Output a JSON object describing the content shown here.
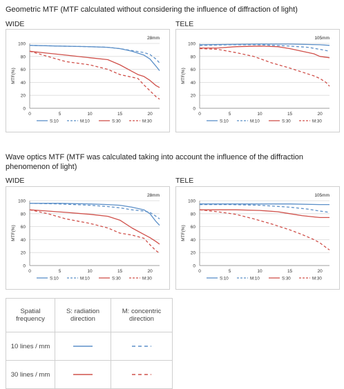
{
  "sections": [
    {
      "title": "Geometric MTF (MTF calculated without considering the influence of diffraction of light)"
    },
    {
      "title": "Wave optics MTF (MTF was calculated taking into account the influence of the diffraction phenomenon of light)"
    }
  ],
  "legend_table": {
    "headers": [
      "Spatial frequency",
      "S: radiation direction",
      "M: concentric direction"
    ],
    "rows": [
      {
        "label": "10 lines / mm",
        "color": "#5b8fc8"
      },
      {
        "label": "30 lines / mm",
        "color": "#d0504a"
      }
    ]
  },
  "colors": {
    "blue": "#5b8fc8",
    "red": "#d0504a",
    "grid": "#d9d9d9"
  },
  "chart_data": [
    {
      "type": "line",
      "panel": "WIDE",
      "focal_length": "28mm",
      "section": "Geometric MTF",
      "ylabel": "MTF(%)",
      "xlim": [
        0,
        21.6
      ],
      "ylim": [
        0,
        100
      ],
      "xticks": [
        0,
        5,
        10,
        15,
        20
      ],
      "yticks": [
        0,
        20,
        40,
        60,
        80,
        100
      ],
      "series": [
        {
          "name": "S:10",
          "style": "solid",
          "color": "blue",
          "x": [
            0,
            5,
            10,
            13,
            15,
            17,
            19,
            20,
            21,
            21.6
          ],
          "y": [
            97,
            96,
            95,
            94,
            92,
            88,
            82,
            76,
            65,
            58
          ]
        },
        {
          "name": "M:10",
          "style": "dashed",
          "color": "blue",
          "x": [
            0,
            5,
            10,
            13,
            15,
            17,
            19,
            20,
            21,
            21.6
          ],
          "y": [
            97,
            96,
            95,
            94,
            92,
            89,
            86,
            83,
            76,
            70
          ]
        },
        {
          "name": "S:30",
          "style": "solid",
          "color": "red",
          "x": [
            0,
            3,
            6,
            10,
            13,
            15,
            17,
            18,
            19,
            20,
            21,
            21.6
          ],
          "y": [
            88,
            85,
            82,
            78,
            75,
            67,
            57,
            52,
            49,
            43,
            35,
            32
          ]
        },
        {
          "name": "M:30",
          "style": "dashed",
          "color": "red",
          "x": [
            0,
            3,
            6,
            10,
            13,
            15,
            17,
            18,
            19,
            20,
            21,
            21.6
          ],
          "y": [
            88,
            80,
            72,
            67,
            60,
            52,
            48,
            46,
            36,
            27,
            18,
            14
          ]
        }
      ]
    },
    {
      "type": "line",
      "panel": "TELE",
      "focal_length": "105mm",
      "section": "Geometric MTF",
      "ylabel": "MTF(%)",
      "xlim": [
        0,
        21.6
      ],
      "ylim": [
        0,
        100
      ],
      "xticks": [
        0,
        5,
        10,
        15,
        20
      ],
      "yticks": [
        0,
        20,
        40,
        60,
        80,
        100
      ],
      "series": [
        {
          "name": "S:10",
          "style": "solid",
          "color": "blue",
          "x": [
            0,
            5,
            10,
            15,
            20,
            21.6
          ],
          "y": [
            98,
            98.5,
            99,
            99,
            98,
            97
          ]
        },
        {
          "name": "M:10",
          "style": "dashed",
          "color": "blue",
          "x": [
            0,
            5,
            10,
            15,
            18,
            20,
            21.6
          ],
          "y": [
            97,
            98,
            98,
            96,
            94,
            91,
            88
          ]
        },
        {
          "name": "S:30",
          "style": "solid",
          "color": "red",
          "x": [
            0,
            3,
            6,
            10,
            13,
            15,
            17,
            19,
            20,
            21.6
          ],
          "y": [
            93,
            93,
            95,
            96,
            95,
            92,
            88,
            84,
            80,
            78
          ]
        },
        {
          "name": "M:30",
          "style": "dashed",
          "color": "red",
          "x": [
            0,
            3,
            6,
            9,
            12,
            15,
            17,
            19,
            20,
            21,
            21.6
          ],
          "y": [
            92,
            91,
            86,
            80,
            70,
            62,
            56,
            50,
            46,
            40,
            34
          ]
        }
      ]
    },
    {
      "type": "line",
      "panel": "WIDE",
      "focal_length": "28mm",
      "section": "Wave optics MTF",
      "ylabel": "MTF(%)",
      "xlim": [
        0,
        21.6
      ],
      "ylim": [
        0,
        100
      ],
      "xticks": [
        0,
        5,
        10,
        15,
        20
      ],
      "yticks": [
        0,
        20,
        40,
        60,
        80,
        100
      ],
      "series": [
        {
          "name": "S:10",
          "style": "solid",
          "color": "blue",
          "x": [
            0,
            5,
            10,
            13,
            15,
            17,
            19,
            20,
            21,
            21.6
          ],
          "y": [
            96,
            96,
            95,
            94,
            93,
            90,
            86,
            80,
            68,
            62
          ]
        },
        {
          "name": "M:10",
          "style": "dashed",
          "color": "blue",
          "x": [
            0,
            5,
            10,
            13,
            15,
            17,
            19,
            20,
            21,
            21.6
          ],
          "y": [
            96,
            95,
            93,
            91,
            89,
            86,
            84,
            82,
            76,
            72
          ]
        },
        {
          "name": "S:30",
          "style": "solid",
          "color": "red",
          "x": [
            0,
            3,
            6,
            10,
            13,
            15,
            17,
            19,
            20,
            21,
            21.6
          ],
          "y": [
            86,
            84,
            82,
            79,
            76,
            70,
            58,
            48,
            43,
            37,
            33
          ]
        },
        {
          "name": "M:30",
          "style": "dashed",
          "color": "red",
          "x": [
            0,
            3,
            6,
            10,
            13,
            15,
            17,
            19,
            20,
            21,
            21.6
          ],
          "y": [
            86,
            80,
            72,
            65,
            58,
            50,
            47,
            42,
            32,
            23,
            19
          ]
        }
      ]
    },
    {
      "type": "line",
      "panel": "TELE",
      "focal_length": "105mm",
      "section": "Wave optics MTF",
      "ylabel": "MTF(%)",
      "xlim": [
        0,
        21.6
      ],
      "ylim": [
        0,
        100
      ],
      "xticks": [
        0,
        5,
        10,
        15,
        20
      ],
      "yticks": [
        0,
        20,
        40,
        60,
        80,
        100
      ],
      "series": [
        {
          "name": "S:10",
          "style": "solid",
          "color": "blue",
          "x": [
            0,
            5,
            10,
            15,
            20,
            21.6
          ],
          "y": [
            95,
            95,
            95,
            95,
            94,
            94
          ]
        },
        {
          "name": "M:10",
          "style": "dashed",
          "color": "blue",
          "x": [
            0,
            5,
            10,
            15,
            18,
            20,
            21.6
          ],
          "y": [
            94,
            94,
            93,
            90,
            87,
            84,
            82
          ]
        },
        {
          "name": "S:30",
          "style": "solid",
          "color": "red",
          "x": [
            0,
            3,
            6,
            10,
            13,
            15,
            17,
            19,
            20,
            21.6
          ],
          "y": [
            86,
            86,
            86,
            85,
            83,
            80,
            77,
            75,
            74,
            74
          ]
        },
        {
          "name": "M:30",
          "style": "dashed",
          "color": "red",
          "x": [
            0,
            3,
            6,
            9,
            12,
            15,
            17,
            19,
            20,
            21,
            21.6
          ],
          "y": [
            86,
            83,
            79,
            72,
            64,
            55,
            48,
            40,
            35,
            28,
            24
          ]
        }
      ]
    }
  ]
}
